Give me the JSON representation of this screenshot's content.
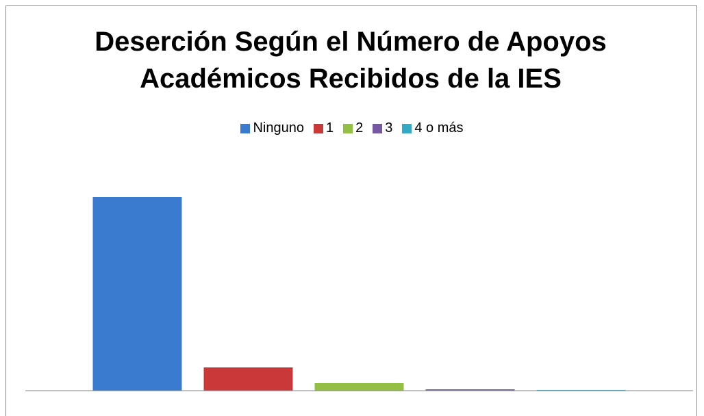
{
  "chart_data": {
    "type": "bar",
    "title": "Deserción Según el Número de Apoyos Académicos Recibidos de la IES",
    "categories": [
      null
    ],
    "series": [
      {
        "name": "Ninguno",
        "color": "#3a7bcf",
        "values": [
          283
        ]
      },
      {
        "name": "1",
        "color": "#c9393a",
        "values": [
          34
        ]
      },
      {
        "name": "2",
        "color": "#94bf45",
        "values": [
          11
        ]
      },
      {
        "name": "3",
        "color": "#7657a3",
        "values": [
          2
        ]
      },
      {
        "name": "4 o más",
        "color": "#35a8c6",
        "values": [
          1
        ]
      }
    ],
    "ylim": [
      0,
      340
    ],
    "legend": "top"
  }
}
